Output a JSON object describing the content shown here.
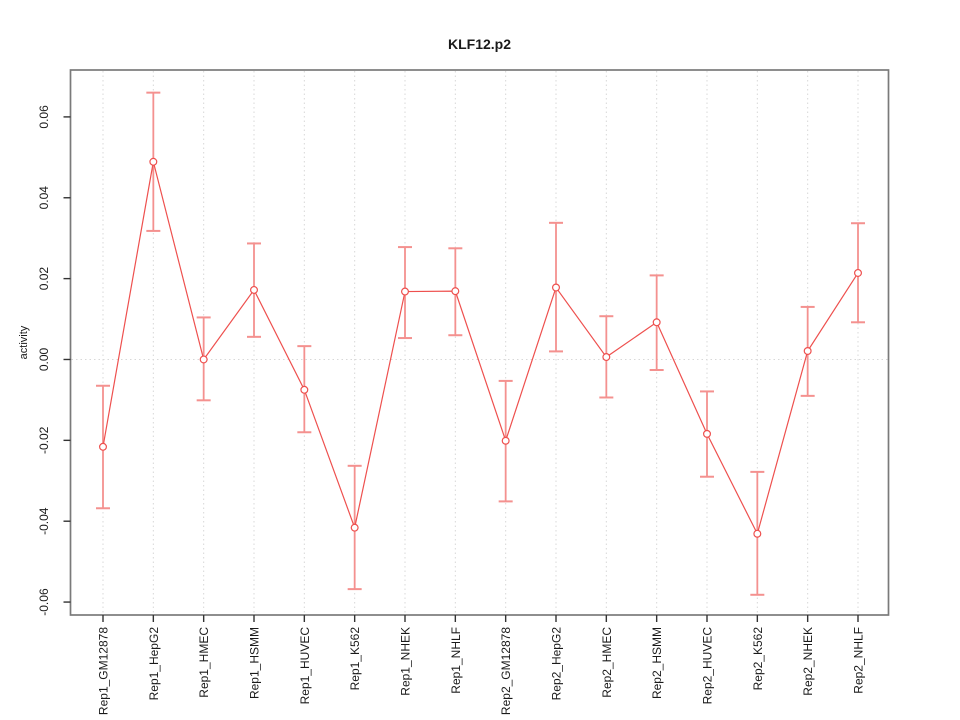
{
  "chart_data": {
    "type": "line",
    "title": "KLF12.p2",
    "xlabel": "",
    "ylabel": "activity",
    "legend": "none",
    "grid": "vertical dotted gridline per category; dotted horizontal line at y=0",
    "marker": "open-circle",
    "categories": [
      "Rep1_GM12878",
      "Rep1_HepG2",
      "Rep1_HMEC",
      "Rep1_HSMM",
      "Rep1_HUVEC",
      "Rep1_K562",
      "Rep1_NHEK",
      "Rep1_NHLF",
      "Rep2_GM12878",
      "Rep2_HepG2",
      "Rep2_HMEC",
      "Rep2_HSMM",
      "Rep2_HUVEC",
      "Rep2_K562",
      "Rep2_NHEK",
      "Rep2_NHLF"
    ],
    "series": [
      {
        "name": "activity",
        "values": [
          -0.0216,
          0.0489,
          0.0,
          0.0172,
          -0.0075,
          -0.0416,
          0.0168,
          0.0169,
          -0.0201,
          0.0178,
          0.0006,
          0.0092,
          -0.0184,
          -0.0431,
          0.0021,
          0.0214
        ],
        "upper": [
          -0.0065,
          0.066,
          0.0104,
          0.0287,
          0.0033,
          -0.0263,
          0.0278,
          0.0275,
          -0.0053,
          0.0338,
          0.0107,
          0.0208,
          -0.0079,
          -0.0278,
          0.013,
          0.0337
        ],
        "lower": [
          -0.0368,
          0.0318,
          -0.0101,
          0.0056,
          -0.018,
          -0.0568,
          0.0053,
          0.006,
          -0.0351,
          0.002,
          -0.0094,
          -0.0026,
          -0.029,
          -0.0582,
          -0.009,
          0.0092
        ]
      }
    ],
    "ylim": [
      -0.0632,
      0.0716
    ],
    "y_ticks": [
      -0.06,
      -0.04,
      -0.02,
      0.0,
      0.02,
      0.04,
      0.06
    ],
    "zero_line": 0.0,
    "colors": {
      "series": "#ee504e",
      "error_bars": "#f4918f",
      "grid": "#d8d8d8",
      "box": "#7a7a7a",
      "tick": "#333333",
      "background": "#ffffff"
    }
  }
}
